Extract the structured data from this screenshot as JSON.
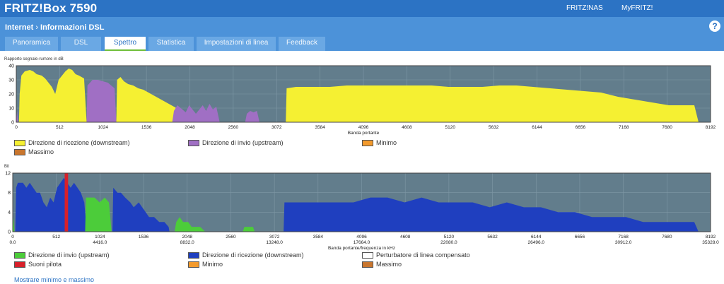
{
  "header": {
    "brand": "FRITZ!Box 7590",
    "links": [
      "FRITZ!NAS",
      "MyFRITZ!"
    ],
    "breadcrumb": [
      "Internet",
      "Informazioni DSL"
    ],
    "help": "?"
  },
  "tabs": [
    {
      "label": "Panoramica",
      "active": false
    },
    {
      "label": "DSL",
      "active": false
    },
    {
      "label": "Spettro",
      "active": true
    },
    {
      "label": "Statistica",
      "active": false
    },
    {
      "label": "Impostazioni di linea",
      "active": false
    },
    {
      "label": "Feedback",
      "active": false
    }
  ],
  "chart_data": [
    {
      "type": "area",
      "ylabel": "Rapporto segnale-rumore in dB",
      "xlabel": "Banda portante",
      "xlim": [
        0,
        8192
      ],
      "ylim": [
        0,
        40
      ],
      "yticks": [
        0,
        10,
        20,
        30,
        40
      ],
      "xticks": [
        0,
        512,
        1024,
        1536,
        2048,
        2560,
        3072,
        3584,
        4096,
        4608,
        5120,
        5632,
        6144,
        6656,
        7168,
        7680,
        8192
      ],
      "series": [
        {
          "name": "Direzione di ricezione (downstream)",
          "color": "#f5f032",
          "points": [
            [
              32,
              0
            ],
            [
              40,
              20
            ],
            [
              60,
              33
            ],
            [
              100,
              36
            ],
            [
              160,
              37
            ],
            [
              200,
              36
            ],
            [
              240,
              34
            ],
            [
              300,
              33
            ],
            [
              340,
              31
            ],
            [
              380,
              28
            ],
            [
              420,
              25
            ],
            [
              460,
              20
            ],
            [
              500,
              30
            ],
            [
              540,
              33
            ],
            [
              580,
              36
            ],
            [
              620,
              38
            ],
            [
              660,
              37
            ],
            [
              700,
              34
            ],
            [
              740,
              33
            ],
            [
              800,
              31
            ],
            [
              830,
              0
            ],
            [
              1180,
              0
            ],
            [
              1190,
              30
            ],
            [
              1230,
              32
            ],
            [
              1270,
              29
            ],
            [
              1320,
              27
            ],
            [
              1380,
              26
            ],
            [
              1440,
              24
            ],
            [
              1500,
              23
            ],
            [
              1560,
              21
            ],
            [
              1620,
              19
            ],
            [
              1680,
              17
            ],
            [
              1740,
              15
            ],
            [
              1800,
              13
            ],
            [
              1860,
              11
            ],
            [
              1920,
              9
            ],
            [
              1960,
              8
            ],
            [
              1990,
              5
            ],
            [
              2000,
              0
            ],
            [
              3180,
              0
            ],
            [
              3190,
              24
            ],
            [
              3300,
              25
            ],
            [
              3500,
              25
            ],
            [
              3700,
              25
            ],
            [
              3900,
              26
            ],
            [
              4100,
              26
            ],
            [
              4300,
              26
            ],
            [
              4500,
              26
            ],
            [
              4700,
              26
            ],
            [
              4900,
              26
            ],
            [
              5100,
              25
            ],
            [
              5300,
              25
            ],
            [
              5500,
              25
            ],
            [
              5700,
              26
            ],
            [
              5900,
              26
            ],
            [
              6100,
              25
            ],
            [
              6300,
              24
            ],
            [
              6500,
              23
            ],
            [
              6700,
              22
            ],
            [
              6900,
              21
            ],
            [
              7100,
              18
            ],
            [
              7200,
              17
            ],
            [
              7300,
              16
            ],
            [
              7400,
              15
            ],
            [
              7500,
              14
            ],
            [
              7600,
              13
            ],
            [
              7700,
              12
            ],
            [
              7800,
              12
            ],
            [
              7900,
              12
            ],
            [
              8000,
              12
            ],
            [
              8050,
              0
            ]
          ]
        },
        {
          "name": "Direzione di invio (upstream)",
          "color": "#a06fc4",
          "points": [
            [
              0,
              0
            ],
            [
              10,
              8
            ],
            [
              20,
              0
            ],
            [
              830,
              0
            ],
            [
              840,
              26
            ],
            [
              900,
              30
            ],
            [
              960,
              30
            ],
            [
              1020,
              29
            ],
            [
              1080,
              28
            ],
            [
              1120,
              26
            ],
            [
              1160,
              24
            ],
            [
              1180,
              0
            ],
            [
              1840,
              0
            ],
            [
              1860,
              8
            ],
            [
              1900,
              12
            ],
            [
              1960,
              9
            ],
            [
              2000,
              7
            ],
            [
              2040,
              12
            ],
            [
              2080,
              9
            ],
            [
              2120,
              6
            ],
            [
              2160,
              9
            ],
            [
              2200,
              12
            ],
            [
              2240,
              8
            ],
            [
              2280,
              13
            ],
            [
              2320,
              9
            ],
            [
              2360,
              11
            ],
            [
              2400,
              0
            ],
            [
              2700,
              0
            ],
            [
              2720,
              6
            ],
            [
              2760,
              8
            ],
            [
              2800,
              7
            ],
            [
              2840,
              8
            ],
            [
              2870,
              0
            ]
          ]
        },
        {
          "name": "Minimo",
          "color": "#f39a2c",
          "points": []
        },
        {
          "name": "Massimo",
          "color": "#c9762e",
          "points": []
        }
      ]
    },
    {
      "type": "area",
      "ylabel": "Bit",
      "xlabel": "Banda portante/frequenza in kHz",
      "xlim": [
        0,
        8192
      ],
      "ylim": [
        0,
        12
      ],
      "yticks": [
        0,
        4,
        8,
        12
      ],
      "xticks": [
        0,
        512,
        1024,
        1536,
        2048,
        2560,
        3072,
        3584,
        4096,
        4608,
        5120,
        5632,
        6144,
        6656,
        7168,
        7680,
        8192
      ],
      "xfreq": [
        "0.0",
        "",
        "4416.0",
        "",
        "8832.0",
        "",
        "13248.0",
        "",
        "17664.0",
        "",
        "22080.0",
        "",
        "26496.0",
        "",
        "30912.0",
        "",
        "35328.0"
      ],
      "series": [
        {
          "name": "Direzione di ricezione (downstream)",
          "color": "#1f3fbf",
          "points": [
            [
              30,
              0
            ],
            [
              40,
              9
            ],
            [
              60,
              10
            ],
            [
              120,
              10
            ],
            [
              160,
              9
            ],
            [
              200,
              10
            ],
            [
              240,
              9
            ],
            [
              280,
              8
            ],
            [
              320,
              8
            ],
            [
              360,
              6
            ],
            [
              400,
              5
            ],
            [
              440,
              7
            ],
            [
              480,
              6
            ],
            [
              520,
              9
            ],
            [
              560,
              10
            ],
            [
              600,
              11
            ],
            [
              640,
              10
            ],
            [
              680,
              9
            ],
            [
              720,
              10
            ],
            [
              760,
              9
            ],
            [
              800,
              8
            ],
            [
              840,
              6
            ],
            [
              870,
              0
            ],
            [
              1170,
              0
            ],
            [
              1180,
              9
            ],
            [
              1230,
              8
            ],
            [
              1270,
              8
            ],
            [
              1320,
              7
            ],
            [
              1380,
              6
            ],
            [
              1420,
              5
            ],
            [
              1480,
              6
            ],
            [
              1520,
              5
            ],
            [
              1560,
              4
            ],
            [
              1600,
              3
            ],
            [
              1660,
              3
            ],
            [
              1720,
              2
            ],
            [
              1780,
              2
            ],
            [
              1830,
              1
            ],
            [
              1840,
              0
            ],
            [
              3180,
              0
            ],
            [
              3190,
              6
            ],
            [
              3400,
              6
            ],
            [
              3600,
              6
            ],
            [
              3800,
              6
            ],
            [
              4000,
              6
            ],
            [
              4200,
              7
            ],
            [
              4400,
              7
            ],
            [
              4600,
              6
            ],
            [
              4800,
              7
            ],
            [
              5000,
              6
            ],
            [
              5200,
              6
            ],
            [
              5400,
              6
            ],
            [
              5600,
              5
            ],
            [
              5800,
              6
            ],
            [
              6000,
              5
            ],
            [
              6200,
              5
            ],
            [
              6400,
              4
            ],
            [
              6600,
              4
            ],
            [
              6800,
              3
            ],
            [
              7000,
              3
            ],
            [
              7200,
              3
            ],
            [
              7400,
              2
            ],
            [
              7600,
              2
            ],
            [
              7800,
              2
            ],
            [
              8000,
              2
            ],
            [
              8050,
              0
            ]
          ]
        },
        {
          "name": "Direzione di invio (upstream)",
          "color": "#4ccc3a",
          "points": [
            [
              0,
              0
            ],
            [
              10,
              3
            ],
            [
              20,
              0
            ],
            [
              850,
              0
            ],
            [
              860,
              7
            ],
            [
              900,
              7
            ],
            [
              960,
              7
            ],
            [
              1020,
              6
            ],
            [
              1080,
              7
            ],
            [
              1130,
              6
            ],
            [
              1160,
              0
            ],
            [
              1900,
              0
            ],
            [
              1920,
              2
            ],
            [
              1960,
              3
            ],
            [
              2000,
              2
            ],
            [
              2060,
              2
            ],
            [
              2100,
              1
            ],
            [
              2200,
              1
            ],
            [
              2260,
              0
            ],
            [
              2700,
              0
            ],
            [
              2720,
              1
            ],
            [
              2820,
              1
            ],
            [
              2840,
              0
            ]
          ]
        },
        {
          "name": "Perturbatore di linea compensato",
          "color": "#ffffff",
          "points": []
        },
        {
          "name": "Suoni pilota",
          "color": "#d8202a",
          "points": [
            [
              610,
              0
            ],
            [
              610,
              12
            ],
            [
              650,
              12
            ],
            [
              650,
              0
            ]
          ]
        },
        {
          "name": "Minimo",
          "color": "#f39a2c",
          "points": []
        },
        {
          "name": "Massimo",
          "color": "#c9762e",
          "points": []
        }
      ]
    }
  ],
  "footer": {
    "link": "Mostrare minimo e massimo"
  }
}
